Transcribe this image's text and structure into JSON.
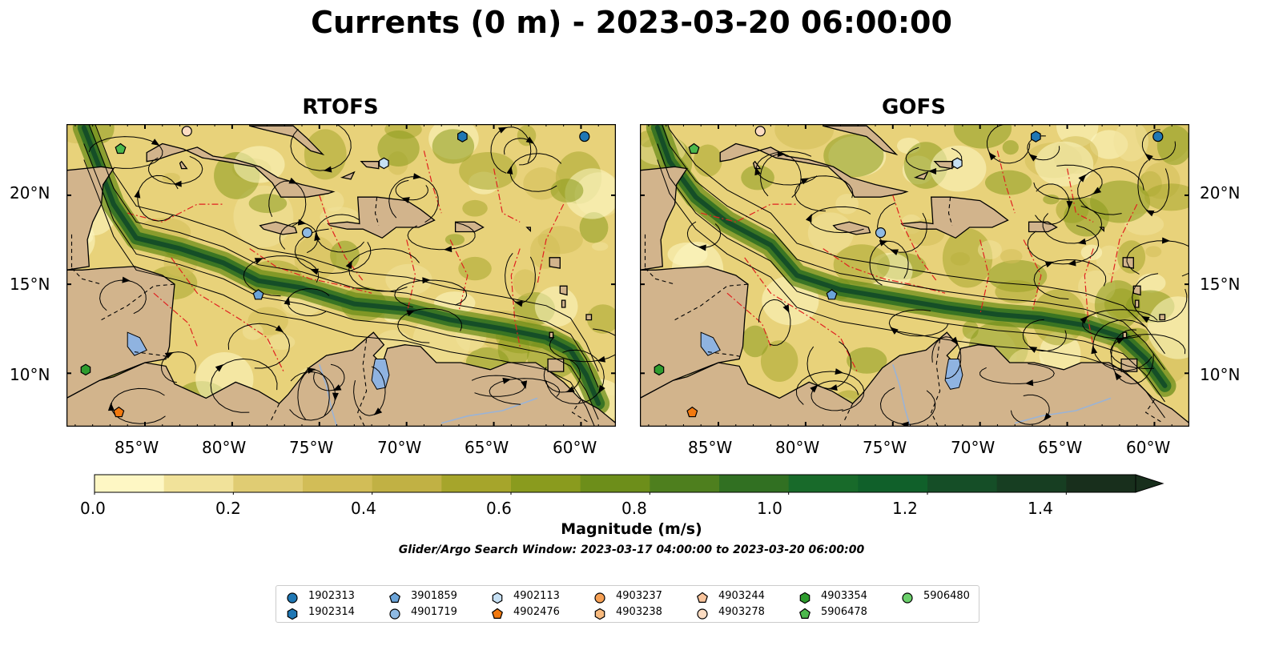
{
  "title": "Currents (0 m) - 2023-03-20 06:00:00",
  "panels": [
    {
      "title": "RTOFS"
    },
    {
      "title": "GOFS"
    }
  ],
  "axes": {
    "lon_ticks": [
      "85°W",
      "80°W",
      "75°W",
      "70°W",
      "65°W",
      "60°W"
    ],
    "lat_ticks": [
      "20°N",
      "15°N",
      "10°N"
    ],
    "lon_range": [
      -89.5,
      -58.0
    ],
    "lat_range": [
      7.0,
      24.0
    ]
  },
  "colorbar": {
    "label": "Magnitude (m/s)",
    "ticks": [
      "0.0",
      "0.2",
      "0.4",
      "0.6",
      "0.8",
      "1.0",
      "1.2",
      "1.4"
    ],
    "range": [
      0.0,
      1.5
    ],
    "extend": "max",
    "colors": [
      "#fef7c4",
      "#f1e29a",
      "#e0cc73",
      "#d2bd57",
      "#c1b144",
      "#a6a52b",
      "#8a9b1e",
      "#6d8e1a",
      "#4e7f1e",
      "#317022",
      "#186a2a",
      "#10602a",
      "#154e27",
      "#173e22",
      "#182f1c"
    ]
  },
  "search_window": "Glider/Argo Search Window: 2023-03-17 04:00:00 to 2023-03-20 06:00:00",
  "legend": {
    "items": [
      {
        "id": "1902313",
        "shape": "circle",
        "color": "#1f77b4"
      },
      {
        "id": "1902314",
        "shape": "hexagon",
        "color": "#1f77b4"
      },
      {
        "id": "3901859",
        "shape": "pentagon",
        "color": "#6ba4d9"
      },
      {
        "id": "4901719",
        "shape": "circle",
        "color": "#8fbae3"
      },
      {
        "id": "4902113",
        "shape": "hexagon",
        "color": "#c6e0f4"
      },
      {
        "id": "4902476",
        "shape": "pentagon",
        "color": "#f2790f"
      },
      {
        "id": "4903237",
        "shape": "circle",
        "color": "#f6a054"
      },
      {
        "id": "4903238",
        "shape": "hexagon",
        "color": "#f8ba7e"
      },
      {
        "id": "4903244",
        "shape": "pentagon",
        "color": "#f9c49c"
      },
      {
        "id": "4903278",
        "shape": "circle",
        "color": "#fcdcc2"
      },
      {
        "id": "4903354",
        "shape": "hexagon",
        "color": "#2e9c2e"
      },
      {
        "id": "5906478",
        "shape": "pentagon",
        "color": "#4cb84c"
      },
      {
        "id": "5906480",
        "shape": "circle",
        "color": "#6bd06b"
      }
    ]
  },
  "floats": [
    {
      "id": "1902313",
      "lon": -59.8,
      "lat": 23.3
    },
    {
      "id": "1902314",
      "lon": -66.8,
      "lat": 23.3
    },
    {
      "id": "3901859",
      "lon": -78.5,
      "lat": 14.4
    },
    {
      "id": "4901719",
      "lon": -75.7,
      "lat": 17.9
    },
    {
      "id": "4902113",
      "lon": -71.3,
      "lat": 21.8
    },
    {
      "id": "4902476",
      "lon": -86.5,
      "lat": 7.8
    },
    {
      "id": "4903278",
      "lon": -82.6,
      "lat": 23.6
    },
    {
      "id": "5906478",
      "lon": -86.4,
      "lat": 22.6
    },
    {
      "id": "4903354",
      "lon": -88.4,
      "lat": 10.2
    }
  ]
}
